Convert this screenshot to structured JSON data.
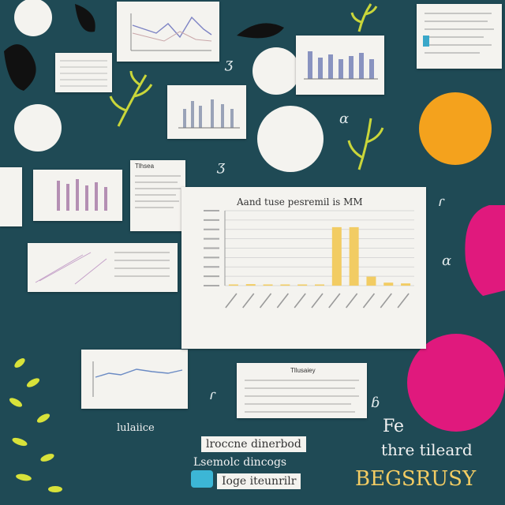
{
  "chart_data": {
    "type": "bar",
    "title": "Aand tuse pesremil is MM",
    "categories": [
      "",
      "",
      "",
      "",
      "",
      "",
      "",
      "",
      "",
      "",
      ""
    ],
    "values": [
      0,
      2,
      0,
      1,
      1,
      0,
      78,
      78,
      12,
      4,
      3
    ],
    "ylim": [
      0,
      100
    ],
    "grid": true,
    "xlabel": "",
    "ylabel": ""
  },
  "small_card_titles": {
    "card_bottom_mid": "Tllusaiey",
    "card_left_mid": "Tlhsea"
  },
  "side_label": "lulaiice",
  "bottom_center": {
    "line1": "lroccne dinerbod",
    "line2": "Lsemolc dincogs",
    "line3": "Ioge iteunrilr"
  },
  "bottom_right": {
    "line1": "Fe",
    "line2": "thre tileard",
    "line3": "BEGSRUSY"
  },
  "colors": {
    "background": "#1f4a55",
    "bar": "#f2cc63",
    "orange": "#f4a21d",
    "magenta": "#e0197d",
    "plant": "#c9d63a"
  }
}
